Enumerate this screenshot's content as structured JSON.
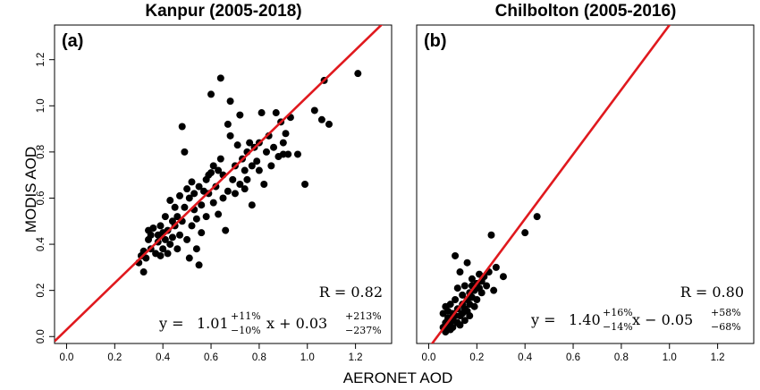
{
  "figure": {
    "x_title": "AERONET AOD",
    "y_title": "MODIS AOD"
  },
  "chart_data": [
    {
      "type": "scatter",
      "title": "Kanpur (2005-2018)",
      "panel_label": "(a)",
      "xlim": [
        -0.05,
        1.35
      ],
      "ylim": [
        -0.03,
        1.35
      ],
      "xticks": [
        "0.0",
        "0.2",
        "0.4",
        "0.6",
        "0.8",
        "1.0",
        "1.2"
      ],
      "yticks": [
        "0.0",
        "0.2",
        "0.4",
        "0.6",
        "0.8",
        "1.0",
        "1.2"
      ],
      "fit_color": "#e0191e",
      "point_color": "#000000",
      "fit": {
        "slope": 1.01,
        "intercept": 0.03
      },
      "stats": {
        "r_text": "R = 0.82",
        "eq_prefix": "y = ",
        "slope_text": "1.01",
        "slope_up": "+11%",
        "slope_down": "−10%",
        "eq_mid": "x + 0.03",
        "int_up": "+213%",
        "int_down": "−237%"
      },
      "points": [
        [
          0.3,
          0.32
        ],
        [
          0.31,
          0.35
        ],
        [
          0.32,
          0.28
        ],
        [
          0.32,
          0.37
        ],
        [
          0.33,
          0.34
        ],
        [
          0.34,
          0.42
        ],
        [
          0.34,
          0.46
        ],
        [
          0.35,
          0.38
        ],
        [
          0.35,
          0.44
        ],
        [
          0.36,
          0.47
        ],
        [
          0.37,
          0.36
        ],
        [
          0.38,
          0.41
        ],
        [
          0.38,
          0.44
        ],
        [
          0.39,
          0.35
        ],
        [
          0.39,
          0.48
        ],
        [
          0.4,
          0.38
        ],
        [
          0.4,
          0.45
        ],
        [
          0.41,
          0.42
        ],
        [
          0.41,
          0.52
        ],
        [
          0.42,
          0.36
        ],
        [
          0.42,
          0.46
        ],
        [
          0.43,
          0.59
        ],
        [
          0.43,
          0.4
        ],
        [
          0.44,
          0.5
        ],
        [
          0.44,
          0.43
        ],
        [
          0.45,
          0.56
        ],
        [
          0.45,
          0.48
        ],
        [
          0.46,
          0.52
        ],
        [
          0.46,
          0.38
        ],
        [
          0.47,
          0.61
        ],
        [
          0.47,
          0.44
        ],
        [
          0.48,
          0.91
        ],
        [
          0.48,
          0.5
        ],
        [
          0.49,
          0.8
        ],
        [
          0.49,
          0.56
        ],
        [
          0.5,
          0.64
        ],
        [
          0.5,
          0.42
        ],
        [
          0.51,
          0.6
        ],
        [
          0.51,
          0.34
        ],
        [
          0.52,
          0.67
        ],
        [
          0.52,
          0.48
        ],
        [
          0.53,
          0.55
        ],
        [
          0.53,
          0.62
        ],
        [
          0.54,
          0.38
        ],
        [
          0.54,
          0.51
        ],
        [
          0.55,
          0.31
        ],
        [
          0.55,
          0.65
        ],
        [
          0.56,
          0.57
        ],
        [
          0.56,
          0.45
        ],
        [
          0.57,
          0.63
        ],
        [
          0.58,
          0.68
        ],
        [
          0.58,
          0.52
        ],
        [
          0.59,
          0.7
        ],
        [
          0.59,
          0.62
        ],
        [
          0.6,
          1.05
        ],
        [
          0.6,
          0.71
        ],
        [
          0.61,
          0.58
        ],
        [
          0.61,
          0.74
        ],
        [
          0.62,
          0.65
        ],
        [
          0.63,
          0.72
        ],
        [
          0.63,
          0.53
        ],
        [
          0.64,
          1.12
        ],
        [
          0.64,
          0.77
        ],
        [
          0.65,
          0.7
        ],
        [
          0.65,
          0.6
        ],
        [
          0.66,
          0.46
        ],
        [
          0.67,
          0.63
        ],
        [
          0.67,
          0.92
        ],
        [
          0.68,
          1.02
        ],
        [
          0.68,
          0.87
        ],
        [
          0.69,
          0.68
        ],
        [
          0.7,
          0.74
        ],
        [
          0.7,
          0.62
        ],
        [
          0.71,
          0.83
        ],
        [
          0.72,
          0.96
        ],
        [
          0.72,
          0.66
        ],
        [
          0.73,
          0.77
        ],
        [
          0.74,
          0.72
        ],
        [
          0.74,
          0.64
        ],
        [
          0.75,
          0.8
        ],
        [
          0.75,
          0.68
        ],
        [
          0.76,
          0.84
        ],
        [
          0.77,
          0.57
        ],
        [
          0.77,
          0.74
        ],
        [
          0.78,
          0.82
        ],
        [
          0.79,
          0.76
        ],
        [
          0.8,
          0.72
        ],
        [
          0.8,
          0.84
        ],
        [
          0.81,
          0.97
        ],
        [
          0.82,
          0.66
        ],
        [
          0.83,
          0.8
        ],
        [
          0.84,
          0.87
        ],
        [
          0.85,
          0.74
        ],
        [
          0.86,
          0.82
        ],
        [
          0.87,
          0.97
        ],
        [
          0.88,
          0.78
        ],
        [
          0.89,
          0.93
        ],
        [
          0.9,
          0.84
        ],
        [
          0.9,
          0.79
        ],
        [
          0.91,
          0.88
        ],
        [
          0.92,
          0.79
        ],
        [
          0.93,
          0.95
        ],
        [
          0.96,
          0.79
        ],
        [
          0.99,
          0.66
        ],
        [
          1.03,
          0.98
        ],
        [
          1.06,
          0.94
        ],
        [
          1.07,
          1.11
        ],
        [
          1.09,
          0.92
        ],
        [
          1.21,
          1.14
        ]
      ]
    },
    {
      "type": "scatter",
      "title": "Chilbolton (2005-2016)",
      "panel_label": "(b)",
      "xlim": [
        -0.05,
        1.35
      ],
      "ylim": [
        -0.03,
        1.35
      ],
      "xticks": [
        "0.0",
        "0.2",
        "0.4",
        "0.6",
        "0.8",
        "1.0",
        "1.2"
      ],
      "yticks": [],
      "fit_color": "#e0191e",
      "point_color": "#000000",
      "fit": {
        "slope": 1.4,
        "intercept": -0.05
      },
      "stats": {
        "r_text": "R = 0.80",
        "eq_prefix": "y = ",
        "slope_text": "1.40",
        "slope_up": "+16%",
        "slope_down": "−14%",
        "eq_mid": "x − 0.05",
        "int_up": "+58%",
        "int_down": "−68%"
      },
      "points": [
        [
          0.06,
          0.04
        ],
        [
          0.06,
          0.1
        ],
        [
          0.07,
          0.06
        ],
        [
          0.07,
          0.13
        ],
        [
          0.07,
          0.02
        ],
        [
          0.08,
          0.08
        ],
        [
          0.08,
          0.04
        ],
        [
          0.08,
          0.11
        ],
        [
          0.09,
          0.06
        ],
        [
          0.09,
          0.03
        ],
        [
          0.09,
          0.14
        ],
        [
          0.1,
          0.07
        ],
        [
          0.1,
          0.1
        ],
        [
          0.1,
          0.04
        ],
        [
          0.11,
          0.09
        ],
        [
          0.11,
          0.35
        ],
        [
          0.11,
          0.16
        ],
        [
          0.12,
          0.06
        ],
        [
          0.12,
          0.12
        ],
        [
          0.12,
          0.21
        ],
        [
          0.13,
          0.09
        ],
        [
          0.13,
          0.28
        ],
        [
          0.13,
          0.05
        ],
        [
          0.14,
          0.14
        ],
        [
          0.14,
          0.1
        ],
        [
          0.14,
          0.18
        ],
        [
          0.15,
          0.12
        ],
        [
          0.15,
          0.22
        ],
        [
          0.15,
          0.07
        ],
        [
          0.16,
          0.16
        ],
        [
          0.16,
          0.32
        ],
        [
          0.16,
          0.11
        ],
        [
          0.17,
          0.19
        ],
        [
          0.17,
          0.14
        ],
        [
          0.17,
          0.09
        ],
        [
          0.18,
          0.22
        ],
        [
          0.18,
          0.17
        ],
        [
          0.18,
          0.25
        ],
        [
          0.19,
          0.13
        ],
        [
          0.19,
          0.2
        ],
        [
          0.2,
          0.23
        ],
        [
          0.2,
          0.16
        ],
        [
          0.21,
          0.27
        ],
        [
          0.21,
          0.21
        ],
        [
          0.22,
          0.19
        ],
        [
          0.22,
          0.24
        ],
        [
          0.23,
          0.26
        ],
        [
          0.24,
          0.22
        ],
        [
          0.25,
          0.28
        ],
        [
          0.26,
          0.44
        ],
        [
          0.27,
          0.2
        ],
        [
          0.28,
          0.3
        ],
        [
          0.31,
          0.26
        ],
        [
          0.4,
          0.45
        ],
        [
          0.45,
          0.52
        ]
      ]
    }
  ]
}
